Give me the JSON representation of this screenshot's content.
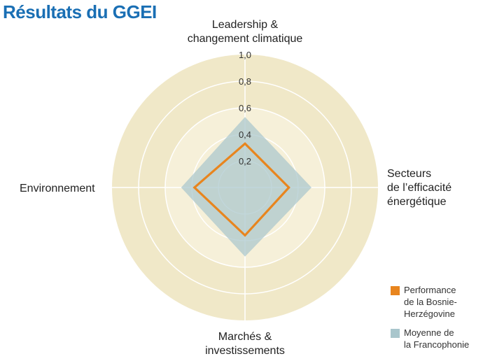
{
  "chart_data": {
    "type": "radar",
    "title": "Résultats du GGEI",
    "axes": [
      "Leadership &\nchangement climatique",
      "Secteurs\nde l’efficacité\nénergétique",
      "Marchés &\ninvestissements",
      "Environnement"
    ],
    "scale_ticks": [
      "0,2",
      "0,4",
      "0,6",
      "0,8",
      "1,0"
    ],
    "range": [
      0,
      1
    ],
    "series": [
      {
        "name": "Moyenne de\nla Francophonie",
        "values": [
          0.53,
          0.5,
          0.52,
          0.48
        ],
        "color": "#a9c6cc"
      },
      {
        "name": "Performance\nde la Bosnie-\nHerzégovine",
        "values": [
          0.33,
          0.33,
          0.36,
          0.38
        ],
        "color": "#e8851e"
      }
    ],
    "colors": {
      "band_outer": "#f0e8c8",
      "band_inner": "#f6f0d9",
      "grid": "#ffffff",
      "title": "#1a6fb4"
    }
  }
}
